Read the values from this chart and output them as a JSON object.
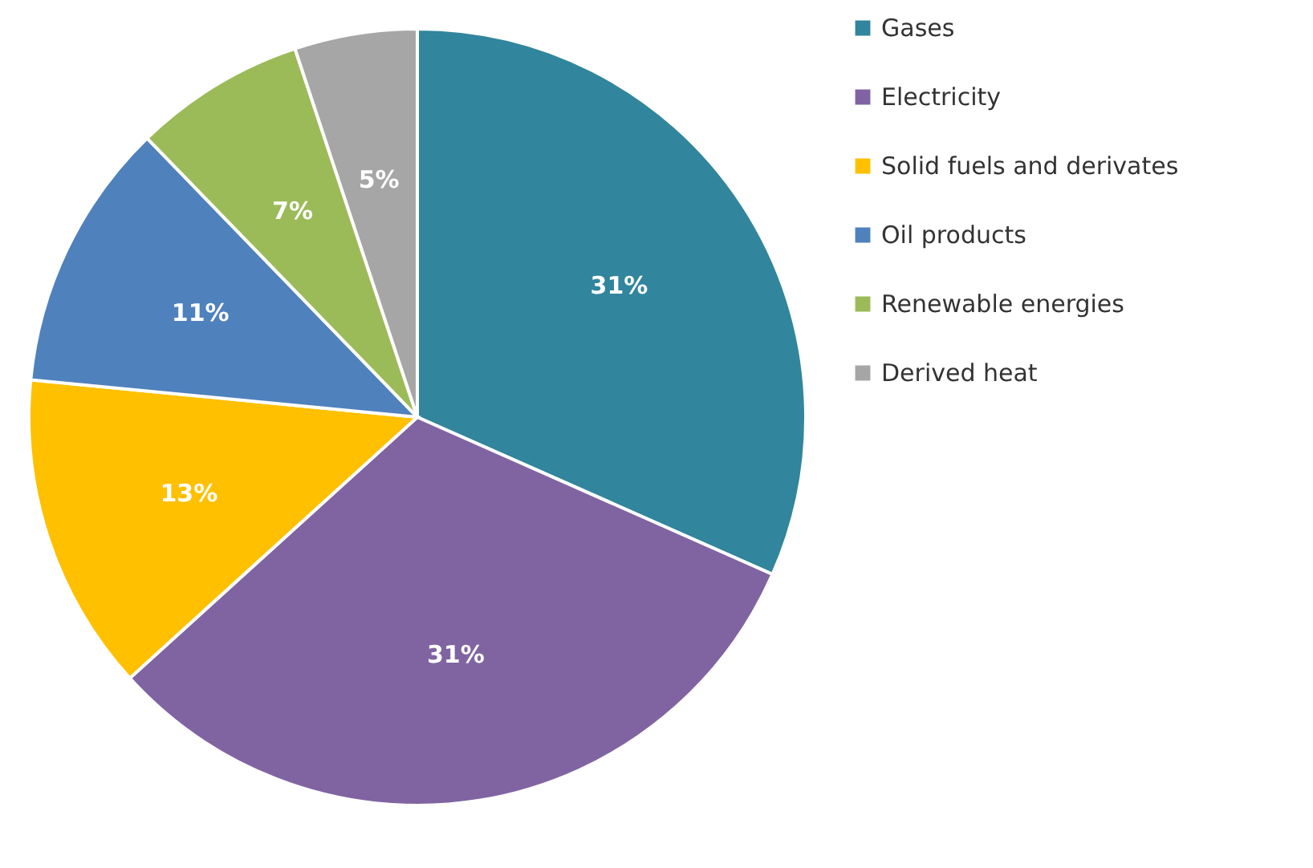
{
  "chart_data": {
    "type": "pie",
    "categories": [
      "Gases",
      "Electricity",
      "Solid fuels and derivates",
      "Oil products",
      "Renewable energies",
      "Derived heat"
    ],
    "values": [
      31,
      31,
      13,
      11,
      7,
      5
    ],
    "value_labels": [
      "31%",
      "31%",
      "13%",
      "11%",
      "7%",
      "5%"
    ],
    "colors": [
      "#31859c",
      "#8064a2",
      "#ffc000",
      "#4f81bd",
      "#9bbb59",
      "#a6a6a6"
    ],
    "legend": "right"
  }
}
